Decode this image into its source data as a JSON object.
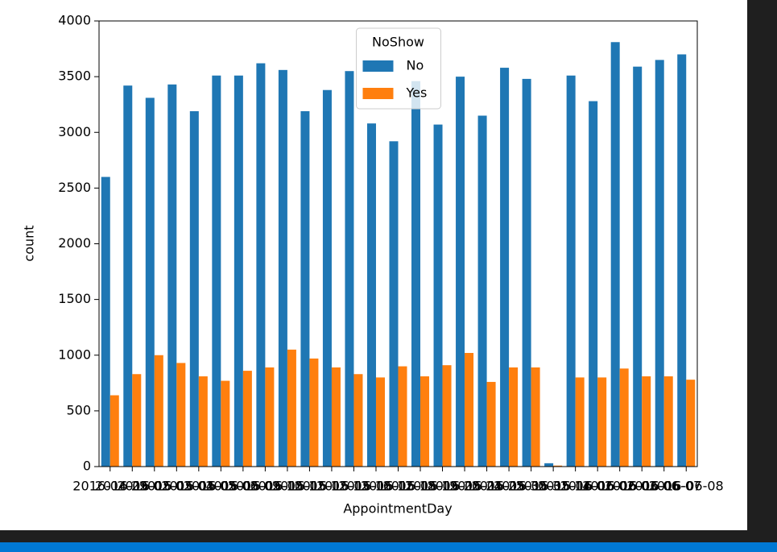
{
  "chart_data": {
    "type": "bar",
    "x_label": "AppointmentDay",
    "y_label": "count",
    "legend_title": "NoShow",
    "legend": "upper center",
    "categories": [
      "2016-04-29",
      "2016-05-02",
      "2016-05-03",
      "2016-05-04",
      "2016-05-05",
      "2016-05-06",
      "2016-05-09",
      "2016-05-10",
      "2016-05-11",
      "2016-05-12",
      "2016-05-13",
      "2016-05-16",
      "2016-05-17",
      "2016-05-18",
      "2016-05-19",
      "2016-05-20",
      "2016-05-24",
      "2016-05-25",
      "2016-05-30",
      "2016-05-31",
      "2016-05-14",
      "2016-06-01",
      "2016-06-02",
      "2016-06-03",
      "2016-06-06",
      "2016-06-07",
      "2016-06-08"
    ],
    "series": [
      {
        "name": "No",
        "color": "#1f77b4",
        "values": [
          2600,
          3420,
          3310,
          3430,
          3190,
          3510,
          3510,
          3620,
          3560,
          3190,
          3380,
          3550,
          3080,
          2920,
          3460,
          3070,
          3500,
          3150,
          3580,
          3480,
          30,
          3510,
          3280,
          3810,
          3590,
          3650,
          3700
        ]
      },
      {
        "name": "Yes",
        "color": "#ff7f0e",
        "values": [
          640,
          830,
          1000,
          930,
          810,
          770,
          860,
          890,
          1050,
          970,
          890,
          830,
          800,
          900,
          810,
          910,
          1020,
          760,
          890,
          890,
          9,
          800,
          800,
          880,
          810,
          810,
          780
        ]
      }
    ],
    "ylim": [
      0,
      4000
    ],
    "yticks": [
      0,
      500,
      1000,
      1500,
      2000,
      2500,
      3000,
      3500,
      4000
    ]
  }
}
